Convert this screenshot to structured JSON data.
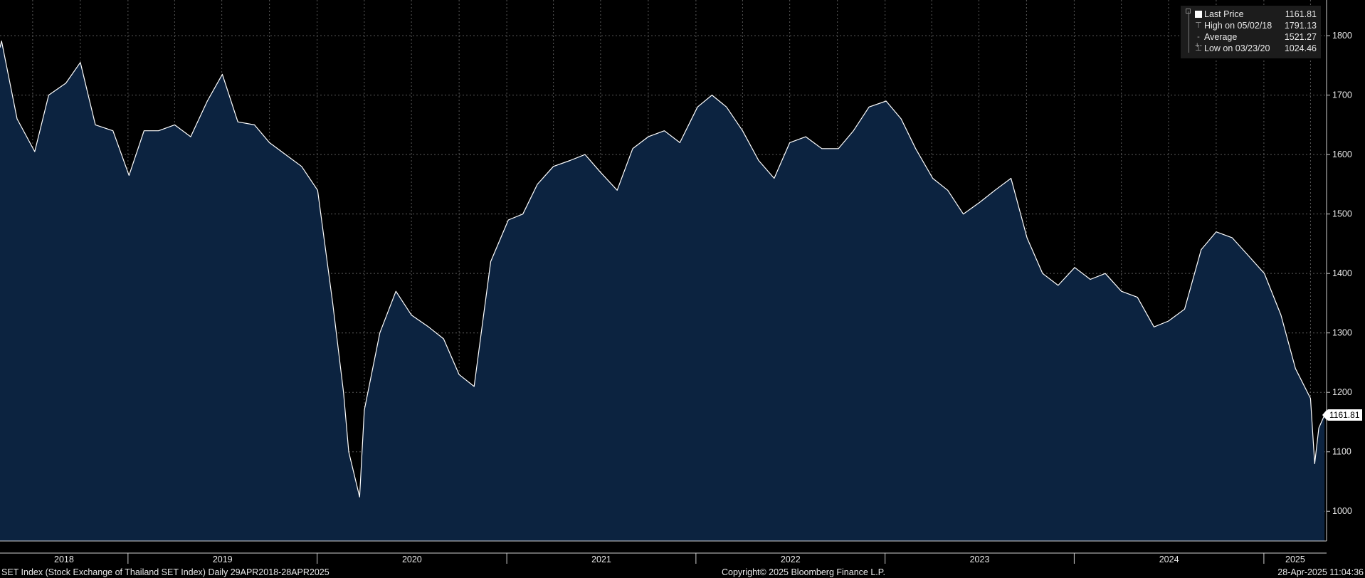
{
  "chart_data": {
    "type": "area",
    "title": "",
    "xlabel": "",
    "ylabel": "",
    "ylim": [
      950,
      1860
    ],
    "y_ticks": [
      1000,
      1100,
      1200,
      1300,
      1400,
      1500,
      1600,
      1700,
      1800
    ],
    "grid": true,
    "legend_position": "top-right",
    "year_labels": [
      "2018",
      "2019",
      "2020",
      "2021",
      "2022",
      "2023",
      "2024",
      "2025"
    ],
    "series": [
      {
        "x": [
          "2018-04-29",
          "2018-05-02",
          "2018-06-01",
          "2018-07-05",
          "2018-08-01",
          "2018-09-03",
          "2018-10-01",
          "2018-10-30",
          "2018-12-03",
          "2019-01-03",
          "2019-02-01",
          "2019-03-01",
          "2019-04-01",
          "2019-05-02",
          "2019-06-03",
          "2019-07-02",
          "2019-08-01",
          "2019-09-02",
          "2019-10-01",
          "2019-11-01",
          "2019-12-02",
          "2020-01-02",
          "2020-01-31",
          "2020-02-21",
          "2020-03-02",
          "2020-03-23",
          "2020-04-01",
          "2020-05-01",
          "2020-06-01",
          "2020-07-01",
          "2020-08-03",
          "2020-09-01",
          "2020-10-01",
          "2020-10-30",
          "2020-12-01",
          "2021-01-04",
          "2021-02-01",
          "2021-03-01",
          "2021-04-01",
          "2021-05-03",
          "2021-06-01",
          "2021-07-01",
          "2021-08-02",
          "2021-09-01",
          "2021-10-01",
          "2021-11-01",
          "2021-12-01",
          "2022-01-04",
          "2022-02-01",
          "2022-03-01",
          "2022-04-01",
          "2022-05-02",
          "2022-06-01",
          "2022-07-01",
          "2022-08-01",
          "2022-09-01",
          "2022-10-03",
          "2022-11-01",
          "2022-12-01",
          "2023-01-03",
          "2023-02-01",
          "2023-03-01",
          "2023-04-03",
          "2023-05-02",
          "2023-06-01",
          "2023-07-03",
          "2023-08-01",
          "2023-09-01",
          "2023-10-02",
          "2023-11-01",
          "2023-12-01",
          "2024-01-02",
          "2024-02-01",
          "2024-03-01",
          "2024-04-01",
          "2024-05-02",
          "2024-06-03",
          "2024-07-01",
          "2024-08-01",
          "2024-09-02",
          "2024-10-01",
          "2024-11-01",
          "2024-12-02",
          "2025-01-02",
          "2025-02-03",
          "2025-03-03",
          "2025-04-01",
          "2025-04-09",
          "2025-04-17",
          "2025-04-28"
        ],
        "values": [
          1780,
          1791,
          1660,
          1605,
          1700,
          1720,
          1755,
          1650,
          1640,
          1565,
          1640,
          1640,
          1650,
          1630,
          1690,
          1735,
          1655,
          1650,
          1620,
          1600,
          1580,
          1540,
          1350,
          1200,
          1100,
          1024,
          1170,
          1300,
          1370,
          1330,
          1310,
          1290,
          1230,
          1210,
          1420,
          1490,
          1500,
          1550,
          1580,
          1590,
          1600,
          1570,
          1540,
          1610,
          1630,
          1640,
          1620,
          1680,
          1700,
          1680,
          1640,
          1590,
          1560,
          1620,
          1630,
          1610,
          1610,
          1640,
          1680,
          1690,
          1660,
          1610,
          1560,
          1540,
          1500,
          1520,
          1540,
          1560,
          1460,
          1400,
          1380,
          1410,
          1390,
          1400,
          1370,
          1360,
          1310,
          1320,
          1340,
          1440,
          1470,
          1460,
          1430,
          1400,
          1330,
          1240,
          1190,
          1080,
          1140,
          1161.81
        ]
      }
    ]
  },
  "legend": {
    "last_price": {
      "label": "Last Price",
      "value": "1161.81"
    },
    "high": {
      "label": "High on 05/02/18",
      "value": "1791.13"
    },
    "average": {
      "label": "Average",
      "value": "1521.27"
    },
    "low": {
      "label": "Low on 03/23/20",
      "value": "1024.46"
    }
  },
  "last_price_tag": "1161.81",
  "footer": {
    "left": "SET Index (Stock Exchange of Thailand SET Index)  Daily 29APR2018-28APR2025",
    "center": "Copyright© 2025 Bloomberg Finance L.P.",
    "right": "28-Apr-2025 11:04:36"
  },
  "colors": {
    "background": "#000000",
    "area_fill": "#0c2340",
    "line": "#ffffff",
    "grid": "#5a5a5a"
  }
}
